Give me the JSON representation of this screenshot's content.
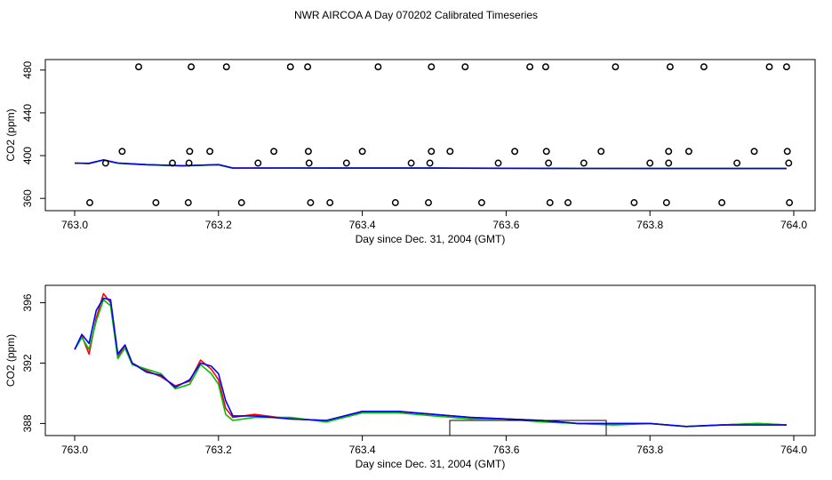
{
  "title": "NWR AIRCOA A  Day 070202  Calibrated Timeseries",
  "colors": {
    "line1": "#ff0000",
    "line2": "#00c000",
    "line3": "#0000ff",
    "axis": "#000000",
    "background": "#ffffff"
  },
  "chart_data": [
    {
      "type": "scatter",
      "xlabel": "Day since Dec. 31, 2004 (GMT)",
      "ylabel": "CO2 (ppm)",
      "xlim": [
        763.0,
        764.0
      ],
      "ylim": [
        356,
        484
      ],
      "x_ticks": [
        "763.0",
        "763.2",
        "763.4",
        "763.6",
        "763.8",
        "764.0"
      ],
      "y_ticks": [
        "360",
        "400",
        "440",
        "480"
      ],
      "grid": false,
      "standards": [
        {
          "x": [
            763.089,
            763.162,
            763.211,
            763.3,
            763.324,
            763.422,
            763.496,
            763.543,
            763.633,
            763.655,
            763.752,
            763.828,
            763.875,
            763.966,
            763.99
          ],
          "value": 483
        },
        {
          "x": [
            763.066,
            763.16,
            763.188,
            763.277,
            763.325,
            763.4,
            763.496,
            763.522,
            763.612,
            763.656,
            763.732,
            763.826,
            763.854,
            763.945,
            763.991
          ],
          "value": 404
        },
        {
          "x": [
            763.043,
            763.136,
            763.159,
            763.255,
            763.326,
            763.378,
            763.468,
            763.494,
            763.589,
            763.659,
            763.708,
            763.8,
            763.826,
            763.921,
            763.993
          ],
          "value": 393
        },
        {
          "x": [
            763.021,
            763.113,
            763.158,
            763.232,
            763.328,
            763.355,
            763.446,
            763.492,
            763.566,
            763.661,
            763.686,
            763.778,
            763.823,
            763.9,
            763.994
          ],
          "value": 356
        }
      ],
      "series": [
        {
          "color": "#ff0000",
          "x": [
            763.0,
            763.02,
            763.04,
            763.06,
            763.1,
            763.15,
            763.2,
            763.22,
            763.3,
            763.5,
            763.7,
            763.9,
            763.99
          ],
          "values": [
            393,
            392.5,
            396,
            393,
            391.5,
            390.5,
            391.5,
            388.3,
            388.4,
            388.3,
            388.0,
            387.9,
            387.9
          ]
        },
        {
          "color": "#00c000",
          "x": [
            763.0,
            763.02,
            763.04,
            763.06,
            763.1,
            763.15,
            763.2,
            763.22,
            763.3,
            763.5,
            763.7,
            763.9,
            763.99
          ],
          "values": [
            393,
            392.6,
            395.8,
            392.8,
            391.4,
            390.4,
            391.4,
            388.2,
            388.4,
            388.3,
            388.0,
            387.9,
            387.9
          ]
        },
        {
          "color": "#0000ff",
          "x": [
            763.0,
            763.02,
            763.04,
            763.06,
            763.1,
            763.15,
            763.2,
            763.22,
            763.3,
            763.5,
            763.7,
            763.9,
            763.99
          ],
          "values": [
            393,
            392.8,
            396,
            393.1,
            391.6,
            390.6,
            391.6,
            388.4,
            388.4,
            388.3,
            388.0,
            387.9,
            387.9
          ]
        }
      ]
    },
    {
      "type": "line",
      "xlabel": "Day since Dec. 31, 2004 (GMT)",
      "ylabel": "CO2 (ppm)",
      "xlim": [
        763.0,
        764.0
      ],
      "ylim": [
        387.2,
        396.8
      ],
      "x_ticks": [
        "763.0",
        "763.2",
        "763.4",
        "763.6",
        "763.8",
        "764.0"
      ],
      "y_ticks": [
        "388",
        "392",
        "396"
      ],
      "grid": false,
      "series": [
        {
          "color": "#ff0000",
          "x": [
            763.0,
            763.01,
            763.02,
            763.03,
            763.04,
            763.05,
            763.06,
            763.07,
            763.08,
            763.1,
            763.12,
            763.14,
            763.16,
            763.175,
            763.19,
            763.2,
            763.21,
            763.22,
            763.25,
            763.3,
            763.35,
            763.4,
            763.45,
            763.5,
            763.55,
            763.6,
            763.65,
            763.7,
            763.75,
            763.8,
            763.85,
            763.9,
            763.95,
            763.99
          ],
          "values": [
            392.9,
            393.8,
            392.6,
            395.0,
            396.6,
            396.0,
            392.4,
            393.2,
            392.0,
            391.5,
            391.1,
            390.5,
            390.8,
            392.2,
            391.6,
            390.9,
            389.0,
            388.4,
            388.6,
            388.3,
            388.2,
            388.8,
            388.8,
            388.6,
            388.4,
            388.3,
            388.2,
            388.0,
            388.0,
            388.0,
            387.8,
            387.9,
            388.0,
            387.9
          ]
        },
        {
          "color": "#00c000",
          "x": [
            763.0,
            763.01,
            763.02,
            763.03,
            763.04,
            763.05,
            763.06,
            763.07,
            763.08,
            763.1,
            763.12,
            763.14,
            763.16,
            763.175,
            763.19,
            763.2,
            763.21,
            763.22,
            763.25,
            763.3,
            763.35,
            763.4,
            763.45,
            763.5,
            763.55,
            763.6,
            763.65,
            763.7,
            763.75,
            763.8,
            763.85,
            763.9,
            763.95,
            763.99
          ],
          "values": [
            392.9,
            393.7,
            392.9,
            394.8,
            396.2,
            395.8,
            392.3,
            393.0,
            391.9,
            391.6,
            391.3,
            390.3,
            390.6,
            391.9,
            391.3,
            390.6,
            388.6,
            388.2,
            388.4,
            388.4,
            388.1,
            388.7,
            388.7,
            388.5,
            388.3,
            388.3,
            388.1,
            388.0,
            387.9,
            388.0,
            387.8,
            387.9,
            388.0,
            387.9
          ]
        },
        {
          "color": "#0000ff",
          "x": [
            763.0,
            763.01,
            763.02,
            763.03,
            763.04,
            763.05,
            763.06,
            763.07,
            763.08,
            763.1,
            763.12,
            763.14,
            763.16,
            763.175,
            763.19,
            763.2,
            763.21,
            763.22,
            763.25,
            763.3,
            763.35,
            763.4,
            763.45,
            763.5,
            763.55,
            763.6,
            763.65,
            763.7,
            763.75,
            763.8,
            763.85,
            763.9,
            763.95,
            763.99
          ],
          "values": [
            392.9,
            393.9,
            393.3,
            395.5,
            396.3,
            396.2,
            392.6,
            393.2,
            392.0,
            391.4,
            391.2,
            390.4,
            390.9,
            392.0,
            391.8,
            391.3,
            389.5,
            388.5,
            388.5,
            388.3,
            388.2,
            388.8,
            388.8,
            388.6,
            388.4,
            388.3,
            388.2,
            388.0,
            388.0,
            388.0,
            387.8,
            387.9,
            387.9,
            387.9
          ]
        }
      ]
    }
  ]
}
